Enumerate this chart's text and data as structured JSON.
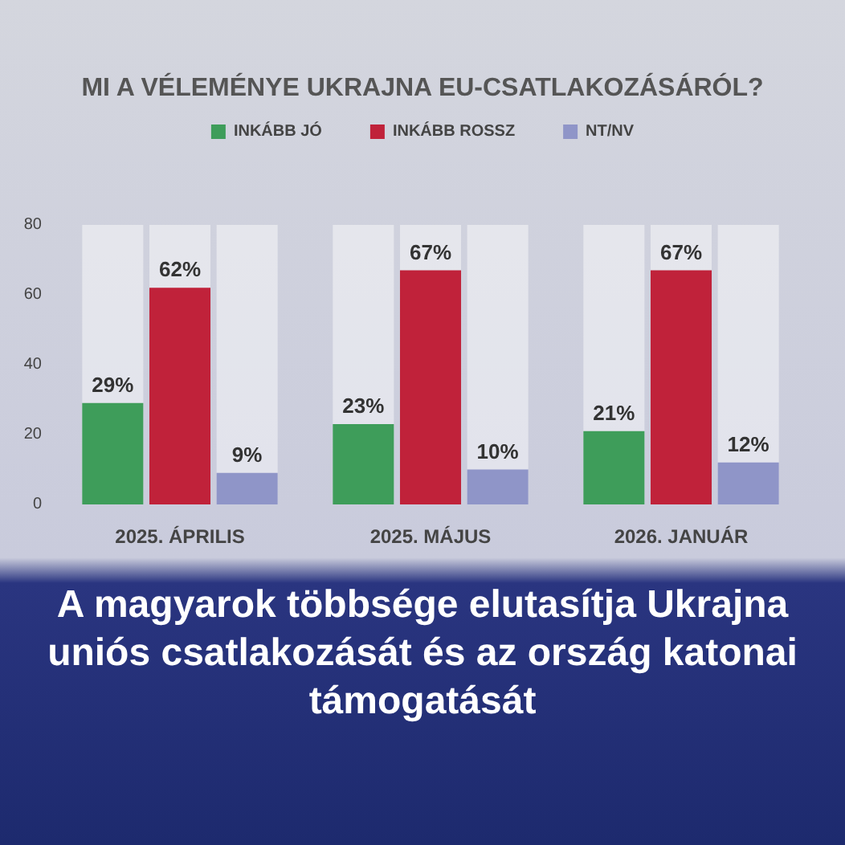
{
  "chart_data": {
    "type": "bar",
    "title": "MI A VÉLEMÉNYE UKRAJNA EU-CSATLAKOZÁSÁRÓL?",
    "categories": [
      "2025. ÁPRILIS",
      "2025. MÁJUS",
      "2026. JANUÁR"
    ],
    "series": [
      {
        "name": "INKÁBB JÓ",
        "color": "#3e9d5a",
        "values": [
          29,
          23,
          21
        ],
        "value_labels": [
          "29%",
          "23%",
          "21%"
        ]
      },
      {
        "name": "INKÁBB ROSSZ",
        "color": "#c0223a",
        "values": [
          62,
          67,
          67
        ],
        "value_labels": [
          "62%",
          "67%",
          "67%"
        ]
      },
      {
        "name": "NT/NV",
        "color": "#8f95c8",
        "values": [
          9,
          10,
          12
        ],
        "value_labels": [
          "9%",
          "10%",
          "12%"
        ]
      }
    ],
    "ylim": [
      0,
      80
    ],
    "yticks": [
      0,
      20,
      40,
      60,
      80
    ],
    "grid": false,
    "legend": "top",
    "annotations": [
      "A magyarok többsége elutasítja Ukrajna uniós csatlakozását és az ország katonai támogatását"
    ]
  }
}
